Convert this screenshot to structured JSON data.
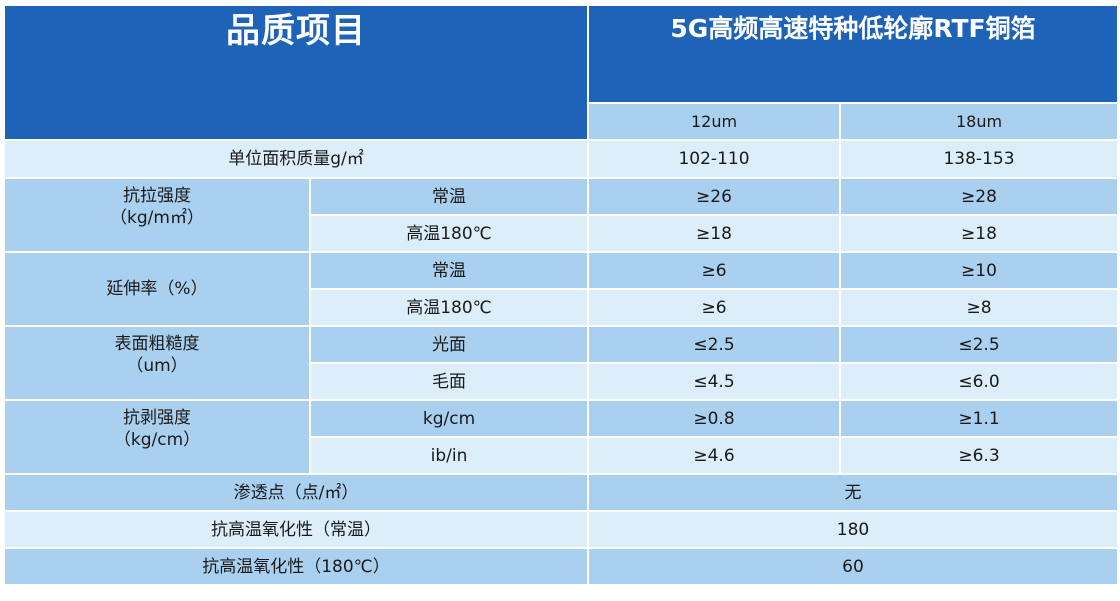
{
  "header": {
    "left_title": "品质项目",
    "right_title": "5G高频高速特种低轮廓RTF铜箔",
    "col_12": "12um",
    "col_18": "18um"
  },
  "rows": {
    "area_weight": {
      "label": "单位面积质量g/㎡",
      "v12": "102-110",
      "v18": "138-153"
    },
    "tensile": {
      "label1": "抗拉强度",
      "label2": "（kg/m㎡）",
      "normal": {
        "label": "常温",
        "v12": "≥26",
        "v18": "≥28"
      },
      "hot": {
        "label": "高温180℃",
        "v12": "≥18",
        "v18": "≥18"
      }
    },
    "elong": {
      "label": "延伸率（%）",
      "normal": {
        "label": "常温",
        "v12": "≥6",
        "v18": "≥10"
      },
      "hot": {
        "label": "高温180℃",
        "v12": "≥6",
        "v18": "≥8"
      }
    },
    "rough": {
      "label1": "表面粗糙度",
      "label2": "（um）",
      "shiny": {
        "label": "光面",
        "v12": "≤2.5",
        "v18": "≤2.5"
      },
      "matte": {
        "label": "毛面",
        "v12": "≤4.5",
        "v18": "≤6.0"
      }
    },
    "peel": {
      "label1": "抗剥强度",
      "label2": "（kg/cm）",
      "kgcm": {
        "label": "kg/cm",
        "v12": "≥0.8",
        "v18": "≥1.1"
      },
      "ibin": {
        "label": "ib/in",
        "v12": "≥4.6",
        "v18": "≥6.3"
      }
    },
    "pinhole": {
      "label": "渗透点（点/㎡）",
      "value": "无"
    },
    "oxid_normal": {
      "label": "抗高温氧化性（常温）",
      "value": "180"
    },
    "oxid_hot": {
      "label": "抗高温氧化性（180℃）",
      "value": "60"
    }
  }
}
